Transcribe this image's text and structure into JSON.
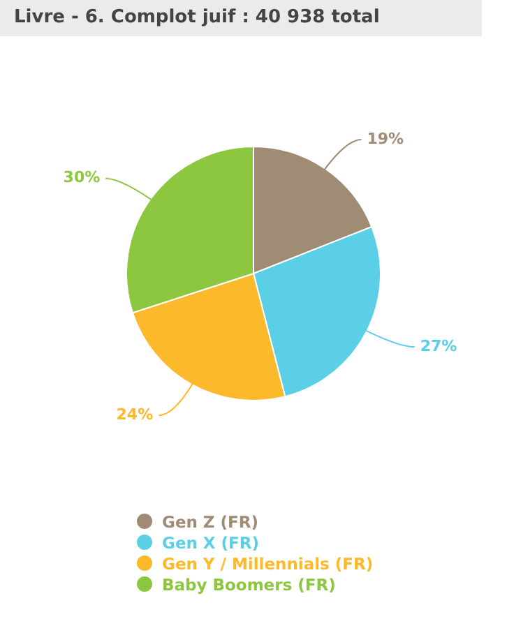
{
  "chart_data": {
    "type": "pie",
    "title": "Livre - 6. Complot juif : 40 938 total",
    "categories": [
      "Gen Z (FR)",
      "Gen X (FR)",
      "Gen Y / Millennials (FR)",
      "Baby Boomers (FR)"
    ],
    "values": [
      19,
      27,
      24,
      30
    ],
    "colors": [
      "#a08c74",
      "#5bcfe6",
      "#fdb92c",
      "#8dc63f"
    ],
    "value_labels": [
      "19%",
      "27%",
      "24%",
      "30%"
    ],
    "legend": "bottom"
  }
}
